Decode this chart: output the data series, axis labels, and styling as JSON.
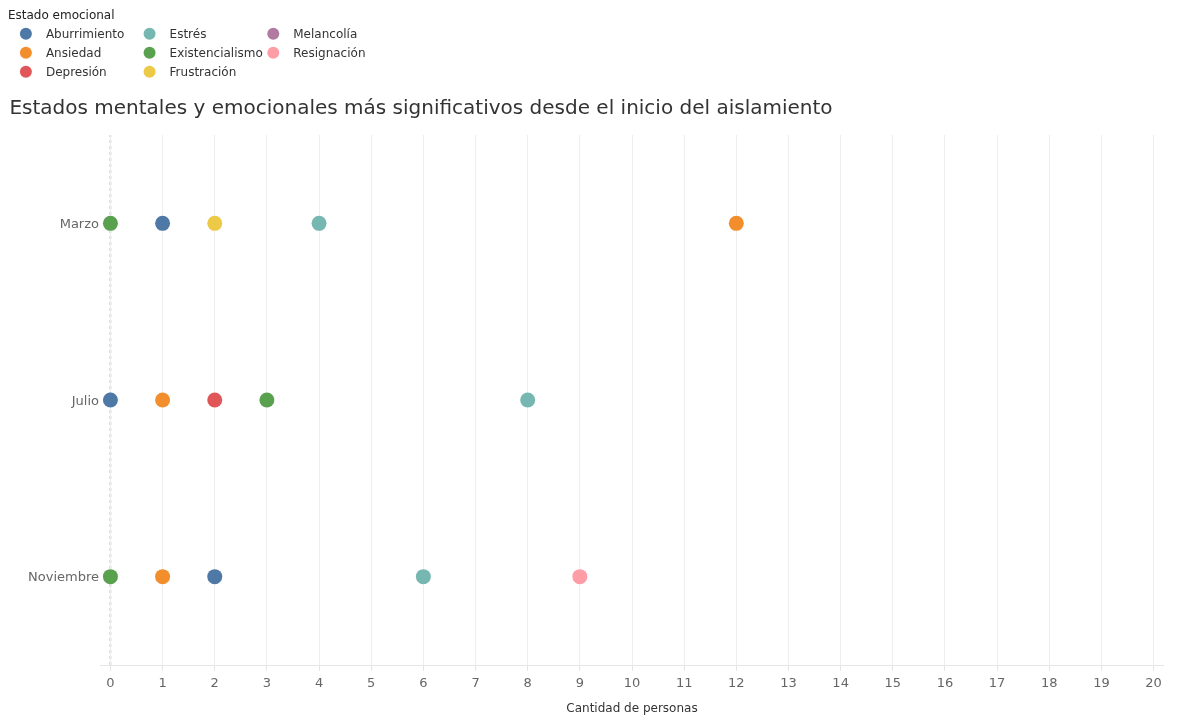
{
  "chart_data": {
    "type": "scatter",
    "orientation": "horizontal",
    "title": "Estados mentales y emocionales más significativos desde el inicio del aislamiento",
    "xlabel": "Cantidad de personas",
    "legend_title": "Estado emocional",
    "categories": [
      "Marzo",
      "Julio",
      "Noviembre"
    ],
    "series": [
      {
        "name": "Aburrimiento",
        "color": "#4e79a7",
        "values": [
          1,
          0,
          2
        ]
      },
      {
        "name": "Ansiedad",
        "color": "#f28e2b",
        "values": [
          12,
          1,
          1
        ]
      },
      {
        "name": "Depresión",
        "color": "#e15759",
        "values": [
          null,
          2,
          null
        ]
      },
      {
        "name": "Estrés",
        "color": "#76b7b2",
        "values": [
          4,
          8,
          6
        ]
      },
      {
        "name": "Existencialismo",
        "color": "#59a14f",
        "values": [
          0,
          3,
          0
        ]
      },
      {
        "name": "Frustración",
        "color": "#edc948",
        "values": [
          2,
          null,
          null
        ]
      },
      {
        "name": "Melancolía",
        "color": "#b07aa1",
        "values": [
          null,
          null,
          null
        ]
      },
      {
        "name": "Resignación",
        "color": "#ff9da7",
        "values": [
          null,
          null,
          9
        ]
      }
    ],
    "xlim": [
      -0.2,
      20.2
    ],
    "xticks": [
      0,
      1,
      2,
      3,
      4,
      5,
      6,
      7,
      8,
      9,
      10,
      11,
      12,
      13,
      14,
      15,
      16,
      17,
      18,
      19,
      20
    ],
    "grid": "x",
    "legend": "top left",
    "marker": "circle",
    "ref_lines": [
      {
        "axis": "x",
        "value": 0,
        "color": "#999999",
        "line_style": "dotted"
      }
    ]
  }
}
